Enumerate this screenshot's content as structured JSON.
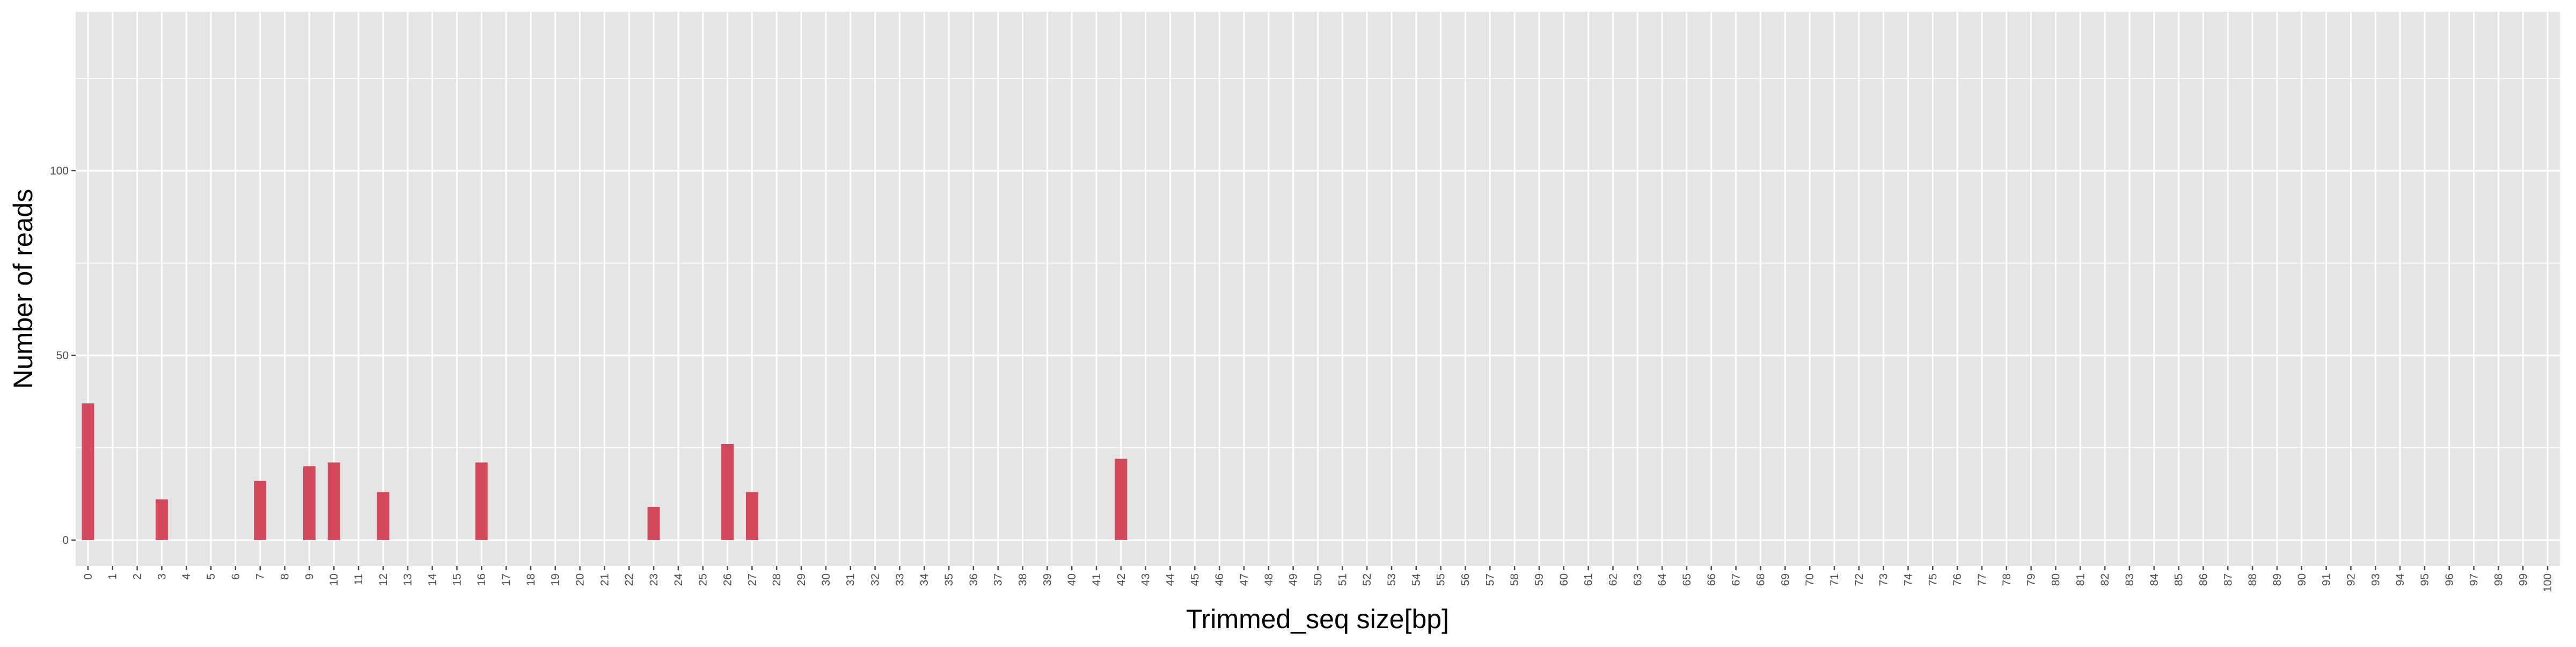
{
  "chart_data": {
    "type": "bar",
    "title": "",
    "xlabel": "Trimmed_seq size[bp]",
    "ylabel": "Number of reads",
    "ylim": [
      -7,
      143
    ],
    "yticks": [
      0,
      50,
      100
    ],
    "grid": true,
    "legend": "none",
    "categories": [
      "0",
      "1",
      "2",
      "3",
      "4",
      "5",
      "6",
      "7",
      "8",
      "9",
      "10",
      "11",
      "12",
      "13",
      "14",
      "15",
      "16",
      "17",
      "18",
      "19",
      "20",
      "21",
      "22",
      "23",
      "24",
      "25",
      "26",
      "27",
      "28",
      "29",
      "30",
      "31",
      "32",
      "33",
      "34",
      "35",
      "36",
      "37",
      "38",
      "39",
      "40",
      "41",
      "42",
      "43",
      "44",
      "45",
      "46",
      "47",
      "48",
      "49",
      "50",
      "51",
      "52",
      "53",
      "54",
      "55",
      "56",
      "57",
      "58",
      "59",
      "60",
      "61",
      "62",
      "63",
      "64",
      "65",
      "66",
      "67",
      "68",
      "69",
      "70",
      "71",
      "72",
      "73",
      "74",
      "75",
      "76",
      "77",
      "78",
      "79",
      "80",
      "81",
      "82",
      "83",
      "84",
      "85",
      "86",
      "87",
      "88",
      "89",
      "90",
      "91",
      "92",
      "93",
      "94",
      "95",
      "96",
      "97",
      "98",
      "99",
      "100"
    ],
    "values": [
      37,
      0,
      0,
      11,
      0,
      0,
      0,
      16,
      0,
      20,
      21,
      0,
      13,
      0,
      0,
      0,
      21,
      0,
      0,
      0,
      0,
      0,
      0,
      9,
      0,
      0,
      26,
      13,
      0,
      0,
      0,
      0,
      0,
      0,
      0,
      0,
      0,
      0,
      0,
      0,
      0,
      0,
      22,
      0,
      0,
      0,
      0,
      0,
      0,
      0,
      0,
      0,
      0,
      0,
      0,
      0,
      0,
      0,
      0,
      0,
      0,
      0,
      0,
      0,
      0,
      0,
      0,
      0,
      0,
      0,
      0,
      0,
      0,
      0,
      0,
      0,
      0,
      0,
      0,
      0,
      0,
      0,
      0,
      0,
      0,
      0,
      0,
      0,
      0,
      0,
      0,
      0,
      0,
      0,
      0,
      0,
      0,
      0,
      0,
      0,
      0
    ],
    "colors": {
      "bar": "#d1495b",
      "panel": "#e5e5e5",
      "grid": "#ffffff",
      "tick": "#4d4d4d",
      "text": "#000000"
    }
  }
}
